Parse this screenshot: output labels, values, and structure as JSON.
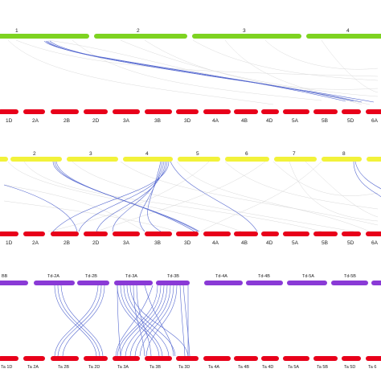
{
  "colors": {
    "green": "#7ed321",
    "yellow": "#f2f23a",
    "purple": "#8a3ad6",
    "red": "#e8001a",
    "link": "#3a50c8",
    "background_link": "#cfcfcf"
  },
  "panel1": {
    "top_labels": [
      "1",
      "2",
      "3",
      "4"
    ],
    "bottom_labels": [
      "1D",
      "2A",
      "2B",
      "2D",
      "3A",
      "3B",
      "3D",
      "4A",
      "4B",
      "4D",
      "5A",
      "5B",
      "5D",
      "6A"
    ]
  },
  "panel2": {
    "top_labels": [
      "",
      "2",
      "3",
      "4",
      "5",
      "6",
      "7",
      "8",
      ""
    ],
    "bottom_labels": [
      "1D",
      "2A",
      "2B",
      "2D",
      "3A",
      "3B",
      "3D",
      "4A",
      "4B",
      "4D",
      "5A",
      "5B",
      "5D",
      "6A"
    ]
  },
  "panel3": {
    "top_labels": [
      "BB",
      "Td-2A",
      "Td-2B",
      "Td-3A",
      "Td-3B",
      "Td-4A",
      "Td-4B",
      "Td-5A",
      "Td-5B",
      ""
    ],
    "bottom_labels": [
      "Ta 1D",
      "Ta 2A",
      "Ta 2B",
      "Ta 2D",
      "Ta 3A",
      "Ta 3B",
      "Ta 3D",
      "Ta 4A",
      "Ta 4B",
      "Ta 4D",
      "Ta 5A",
      "Ta 5B",
      "Ta 5D",
      "Ta 6"
    ]
  }
}
